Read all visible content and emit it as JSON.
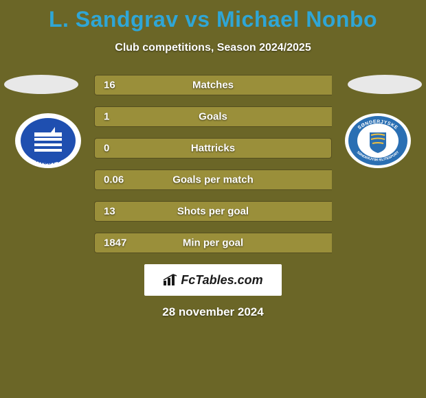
{
  "title_color": "#2fa6d6",
  "title": "L. Sandgrav vs Michael Nonbo",
  "subtitle": "Club competitions, Season 2024/2025",
  "bar_track_color": "#6b6627",
  "bar_left_color": "#9a8f3a",
  "bar_right_color": "#9a8f3a",
  "bars": [
    {
      "label": "Matches",
      "left_val": "16",
      "right_val": "",
      "left_pct": 100,
      "right_pct": 0
    },
    {
      "label": "Goals",
      "left_val": "1",
      "right_val": "",
      "left_pct": 100,
      "right_pct": 0
    },
    {
      "label": "Hattricks",
      "left_val": "0",
      "right_val": "",
      "left_pct": 50,
      "right_pct": 50
    },
    {
      "label": "Goals per match",
      "left_val": "0.06",
      "right_val": "",
      "left_pct": 100,
      "right_pct": 0
    },
    {
      "label": "Shots per goal",
      "left_val": "13",
      "right_val": "",
      "left_pct": 100,
      "right_pct": 0
    },
    {
      "label": "Min per goal",
      "left_val": "1847",
      "right_val": "",
      "left_pct": 100,
      "right_pct": 0
    }
  ],
  "left_club": {
    "name": "Lyngby BK",
    "badge_text": "YNGBY B",
    "primary": "#1f4fb0",
    "secondary": "#ffffff"
  },
  "right_club": {
    "name": "SønderjyskE",
    "badge_text_top": "SØNDERJYSKE",
    "badge_text_bottom": "SØNDERJYSK·ELITESPORT",
    "primary": "#2a6fb3",
    "secondary": "#ffffff"
  },
  "brand": "FcTables.com",
  "footer_date": "28 november 2024"
}
